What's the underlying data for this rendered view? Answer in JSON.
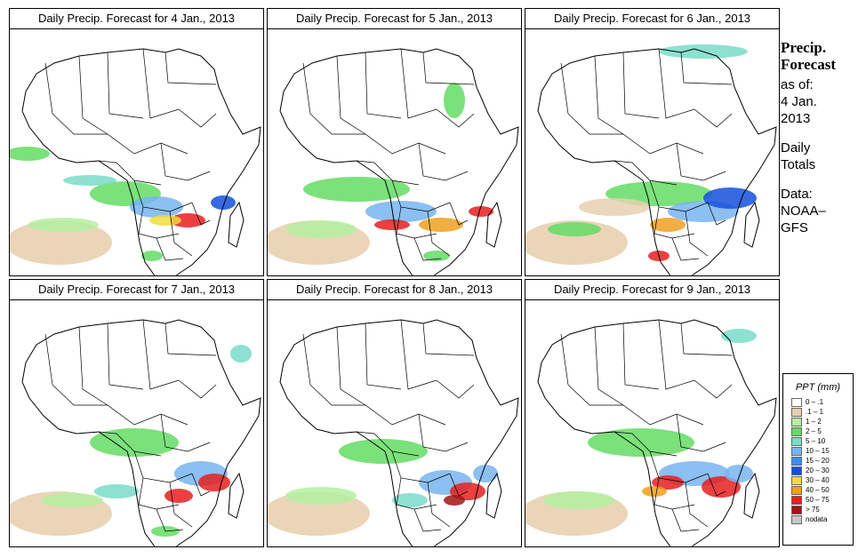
{
  "panels": [
    {
      "title": "Daily Precip. Forecast for  4 Jan., 2013"
    },
    {
      "title": "Daily Precip. Forecast for  5 Jan., 2013"
    },
    {
      "title": "Daily Precip. Forecast for  6 Jan., 2013"
    },
    {
      "title": "Daily Precip. Forecast for  7 Jan., 2013"
    },
    {
      "title": "Daily Precip. Forecast for  8 Jan., 2013"
    },
    {
      "title": "Daily Precip. Forecast for  9 Jan., 2013"
    }
  ],
  "side": {
    "title_line1": "Precip.",
    "title_line2": "Forecast",
    "asof_line1": "as of:",
    "asof_line2": "4 Jan.",
    "asof_line3": "2013",
    "daily_line1": "Daily",
    "daily_line2": "Totals",
    "data_line1": "Data:",
    "data_line2": "NOAA–",
    "data_line3": "GFS"
  },
  "legend": {
    "title": "PPT (mm)",
    "items": [
      {
        "label": "0 – .1",
        "color": "#ffffff"
      },
      {
        "label": ".1 – 1",
        "color": "#e8d0b0"
      },
      {
        "label": "1 – 2",
        "color": "#b4f0a0"
      },
      {
        "label": "2 – 5",
        "color": "#64dc64"
      },
      {
        "label": "5 – 10",
        "color": "#78dcc8"
      },
      {
        "label": "10 – 15",
        "color": "#78b4f0"
      },
      {
        "label": "15 – 20",
        "color": "#3c8cf0"
      },
      {
        "label": "20 – 30",
        "color": "#1450dc"
      },
      {
        "label": "30 – 40",
        "color": "#f0dc3c"
      },
      {
        "label": "40 – 50",
        "color": "#f0a01e"
      },
      {
        "label": "50 – 75",
        "color": "#e61e1e"
      },
      {
        "label": "> 75",
        "color": "#a01414"
      },
      {
        "label": "nodata",
        "color": "#c8c8c8"
      }
    ]
  }
}
